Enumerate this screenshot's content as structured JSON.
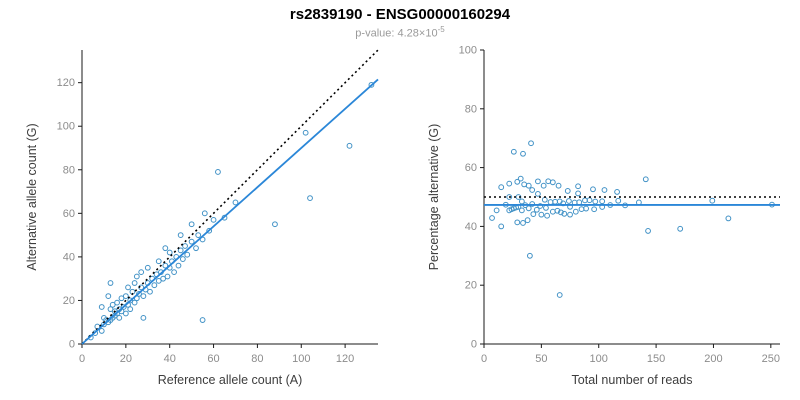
{
  "header": {
    "title": "rs2839190 - ENSG00000160294",
    "pvalue_prefix": "p-value: 4.28×10",
    "pvalue_exponent": "-5"
  },
  "colors": {
    "point_stroke": "#4292c6",
    "fit_line": "#2b87d8",
    "identity_line": "#000000",
    "axis": "#1a1a1a",
    "tick_label": "#8c8c8c"
  },
  "chart_data": [
    {
      "type": "scatter",
      "title": "rs2839190 - ENSG00000160294",
      "xlabel": "Reference allele count (A)",
      "ylabel": "Alternative allele count (G)",
      "xlim": [
        0,
        135
      ],
      "ylim": [
        0,
        135
      ],
      "xticks": [
        0,
        20,
        40,
        60,
        80,
        100,
        120
      ],
      "yticks": [
        0,
        20,
        40,
        60,
        80,
        100,
        120
      ],
      "grid": false,
      "points": [
        [
          4,
          3
        ],
        [
          6,
          5
        ],
        [
          7,
          8
        ],
        [
          9,
          6
        ],
        [
          9,
          17
        ],
        [
          10,
          12
        ],
        [
          10,
          9
        ],
        [
          11,
          11
        ],
        [
          12,
          10
        ],
        [
          12,
          22
        ],
        [
          13,
          11
        ],
        [
          13,
          16
        ],
        [
          13,
          28
        ],
        [
          14,
          12
        ],
        [
          14,
          18
        ],
        [
          15,
          13
        ],
        [
          15,
          15
        ],
        [
          16,
          14
        ],
        [
          16,
          19
        ],
        [
          17,
          12
        ],
        [
          17,
          16
        ],
        [
          18,
          15
        ],
        [
          18,
          21
        ],
        [
          19,
          17
        ],
        [
          20,
          14
        ],
        [
          20,
          22
        ],
        [
          21,
          18
        ],
        [
          21,
          26
        ],
        [
          22,
          16
        ],
        [
          22,
          20
        ],
        [
          23,
          24
        ],
        [
          24,
          19
        ],
        [
          24,
          28
        ],
        [
          25,
          21
        ],
        [
          25,
          31
        ],
        [
          26,
          23
        ],
        [
          27,
          26
        ],
        [
          27,
          33
        ],
        [
          28,
          12
        ],
        [
          28,
          22
        ],
        [
          29,
          25
        ],
        [
          30,
          28
        ],
        [
          30,
          35
        ],
        [
          31,
          24
        ],
        [
          32,
          30
        ],
        [
          33,
          27
        ],
        [
          34,
          32
        ],
        [
          35,
          29
        ],
        [
          35,
          38
        ],
        [
          36,
          33
        ],
        [
          37,
          30
        ],
        [
          38,
          36
        ],
        [
          38,
          44
        ],
        [
          39,
          31
        ],
        [
          40,
          35
        ],
        [
          40,
          42
        ],
        [
          41,
          38
        ],
        [
          42,
          33
        ],
        [
          43,
          40
        ],
        [
          44,
          36
        ],
        [
          45,
          43
        ],
        [
          45,
          50
        ],
        [
          46,
          39
        ],
        [
          47,
          45
        ],
        [
          48,
          41
        ],
        [
          50,
          47
        ],
        [
          50,
          55
        ],
        [
          52,
          44
        ],
        [
          53,
          50
        ],
        [
          55,
          11
        ],
        [
          55,
          48
        ],
        [
          56,
          60
        ],
        [
          58,
          52
        ],
        [
          60,
          57
        ],
        [
          62,
          79
        ],
        [
          65,
          58
        ],
        [
          70,
          65
        ],
        [
          88,
          55
        ],
        [
          102,
          97
        ],
        [
          104,
          67
        ],
        [
          122,
          91
        ],
        [
          132,
          119
        ]
      ],
      "lines": [
        {
          "name": "identity-line",
          "x1": 0,
          "y1": 0,
          "x2": 135,
          "y2": 135,
          "style": "dotted",
          "color": "#000000"
        },
        {
          "name": "fit-line",
          "x1": 0,
          "y1": 0,
          "x2": 135,
          "y2": 121.5,
          "style": "solid",
          "color": "#2b87d8"
        }
      ]
    },
    {
      "type": "scatter",
      "xlabel": "Total number of reads",
      "ylabel": "Percentage alternative (G)",
      "xlim": [
        0,
        258
      ],
      "ylim": [
        0,
        100
      ],
      "xticks": [
        0,
        50,
        100,
        150,
        200,
        250
      ],
      "yticks": [
        0,
        20,
        40,
        60,
        80,
        100
      ],
      "grid": false,
      "points_derived_from": "chart 1 points: x = ref+alt, y = 100*alt/(ref+alt)",
      "lines": [
        {
          "name": "null-line",
          "x1": 0,
          "y1": 50,
          "x2": 258,
          "y2": 50,
          "style": "dotted",
          "color": "#000000"
        },
        {
          "name": "fit-line",
          "x1": 0,
          "y1": 47.3,
          "x2": 258,
          "y2": 47.3,
          "style": "solid",
          "color": "#2b87d8"
        }
      ]
    }
  ]
}
